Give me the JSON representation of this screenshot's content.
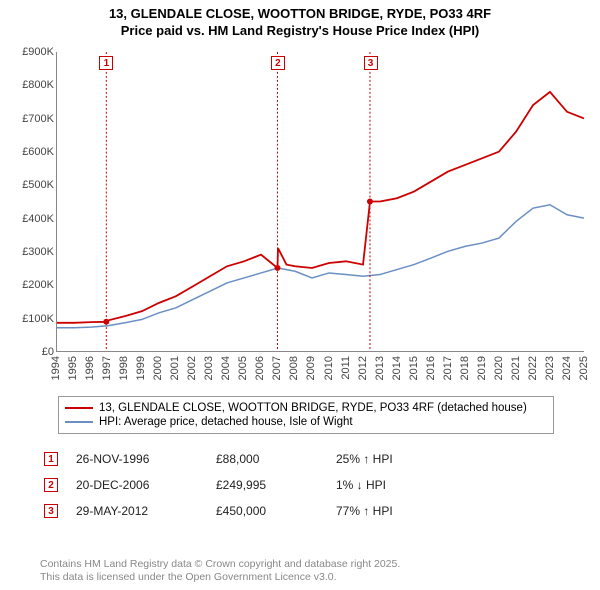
{
  "title": {
    "line1": "13, GLENDALE CLOSE, WOOTTON BRIDGE, RYDE, PO33 4RF",
    "line2": "Price paid vs. HM Land Registry's House Price Index (HPI)"
  },
  "chart": {
    "type": "line",
    "background_color": "#ffffff",
    "axis_color": "#888888",
    "x": {
      "min": 1994,
      "max": 2025,
      "tick_step": 1
    },
    "y": {
      "min": 0,
      "max": 900000,
      "tick_step": 100000,
      "tick_labels": [
        "£0",
        "£100K",
        "£200K",
        "£300K",
        "£400K",
        "£500K",
        "£600K",
        "£700K",
        "£800K",
        "£900K"
      ]
    },
    "series": [
      {
        "id": "price_paid",
        "label": "13, GLENDALE CLOSE, WOOTTON BRIDGE, RYDE, PO33 4RF (detached house)",
        "color": "#cc0000",
        "line_width": 1.8,
        "points": [
          [
            1994,
            85000
          ],
          [
            1995,
            85000
          ],
          [
            1996,
            87000
          ],
          [
            1996.9,
            88000
          ],
          [
            1997,
            92000
          ],
          [
            1998,
            105000
          ],
          [
            1999,
            120000
          ],
          [
            2000,
            145000
          ],
          [
            2001,
            165000
          ],
          [
            2002,
            195000
          ],
          [
            2003,
            225000
          ],
          [
            2004,
            255000
          ],
          [
            2005,
            270000
          ],
          [
            2006,
            290000
          ],
          [
            2006.97,
            249995
          ],
          [
            2007,
            310000
          ],
          [
            2007.5,
            260000
          ],
          [
            2008,
            255000
          ],
          [
            2009,
            250000
          ],
          [
            2010,
            265000
          ],
          [
            2011,
            270000
          ],
          [
            2012,
            260000
          ],
          [
            2012.41,
            450000
          ],
          [
            2013,
            450000
          ],
          [
            2014,
            460000
          ],
          [
            2015,
            480000
          ],
          [
            2016,
            510000
          ],
          [
            2017,
            540000
          ],
          [
            2018,
            560000
          ],
          [
            2019,
            580000
          ],
          [
            2020,
            600000
          ],
          [
            2021,
            660000
          ],
          [
            2022,
            740000
          ],
          [
            2023,
            780000
          ],
          [
            2024,
            720000
          ],
          [
            2025,
            700000
          ]
        ]
      },
      {
        "id": "hpi",
        "label": "HPI: Average price, detached house, Isle of Wight",
        "color": "#6a8fc4",
        "line_width": 1.5,
        "points": [
          [
            1994,
            70000
          ],
          [
            1995,
            70000
          ],
          [
            1996,
            72000
          ],
          [
            1997,
            76000
          ],
          [
            1998,
            85000
          ],
          [
            1999,
            95000
          ],
          [
            2000,
            115000
          ],
          [
            2001,
            130000
          ],
          [
            2002,
            155000
          ],
          [
            2003,
            180000
          ],
          [
            2004,
            205000
          ],
          [
            2005,
            220000
          ],
          [
            2006,
            235000
          ],
          [
            2007,
            250000
          ],
          [
            2008,
            240000
          ],
          [
            2009,
            220000
          ],
          [
            2010,
            235000
          ],
          [
            2011,
            230000
          ],
          [
            2012,
            225000
          ],
          [
            2013,
            230000
          ],
          [
            2014,
            245000
          ],
          [
            2015,
            260000
          ],
          [
            2016,
            280000
          ],
          [
            2017,
            300000
          ],
          [
            2018,
            315000
          ],
          [
            2019,
            325000
          ],
          [
            2020,
            340000
          ],
          [
            2021,
            390000
          ],
          [
            2022,
            430000
          ],
          [
            2023,
            440000
          ],
          [
            2024,
            410000
          ],
          [
            2025,
            400000
          ]
        ]
      }
    ],
    "markers": [
      {
        "num": "1",
        "x": 1996.9,
        "y": 88000,
        "vline_color": "#cc0000"
      },
      {
        "num": "2",
        "x": 2006.97,
        "y": 249995,
        "vline_color": "#cc0000"
      },
      {
        "num": "3",
        "x": 2012.41,
        "y": 450000,
        "vline_color": "#cc0000"
      }
    ],
    "marker_dot_color": "#cc0000"
  },
  "legend": {
    "rows": [
      {
        "color": "#cc0000",
        "label_ref": "chart.series.0.label"
      },
      {
        "color": "#6a8fc4",
        "label_ref": "chart.series.1.label"
      }
    ]
  },
  "transactions": [
    {
      "num": "1",
      "date": "26-NOV-1996",
      "price": "£88,000",
      "hpi": "25% ↑ HPI"
    },
    {
      "num": "2",
      "date": "20-DEC-2006",
      "price": "£249,995",
      "hpi": "1% ↓ HPI"
    },
    {
      "num": "3",
      "date": "29-MAY-2012",
      "price": "£450,000",
      "hpi": "77% ↑ HPI"
    }
  ],
  "footer": {
    "line1": "Contains HM Land Registry data © Crown copyright and database right 2025.",
    "line2": "This data is licensed under the Open Government Licence v3.0."
  }
}
